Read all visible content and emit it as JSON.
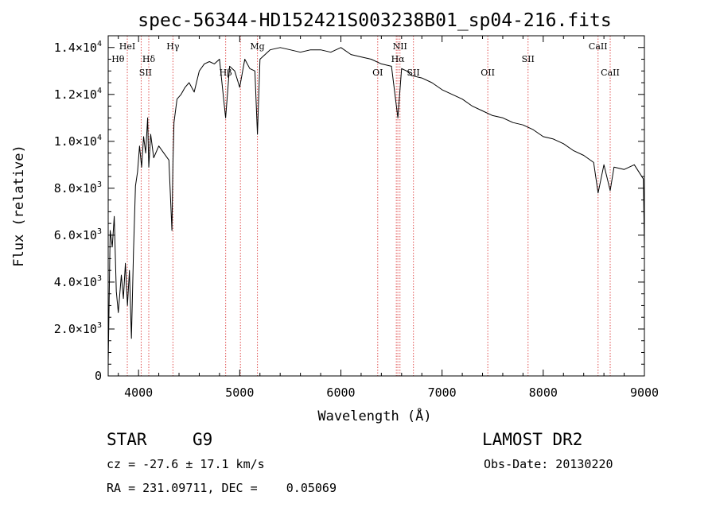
{
  "chart_data": {
    "type": "line",
    "title": "spec-56344-HD152421S003238B01_sp04-216.fits",
    "xlabel": "Wavelength (Å)",
    "ylabel": "Flux (relative)",
    "xlim": [
      3700,
      9000
    ],
    "ylim": [
      0,
      14500
    ],
    "x_ticks": [
      4000,
      5000,
      6000,
      7000,
      8000,
      9000
    ],
    "x_tick_labels": [
      "4000",
      "5000",
      "6000",
      "7000",
      "8000",
      "9000"
    ],
    "y_ticks": [
      0,
      2000,
      4000,
      6000,
      8000,
      10000,
      12000,
      14000
    ],
    "y_tick_labels": [
      {
        "mant": "0",
        "exp": ""
      },
      {
        "mant": "2.0×10",
        "exp": "3"
      },
      {
        "mant": "4.0×10",
        "exp": "3"
      },
      {
        "mant": "6.0×10",
        "exp": "3"
      },
      {
        "mant": "8.0×10",
        "exp": "3"
      },
      {
        "mant": "1.0×10",
        "exp": "4"
      },
      {
        "mant": "1.2×10",
        "exp": "4"
      },
      {
        "mant": "1.4×10",
        "exp": "4"
      }
    ],
    "grid": false,
    "series": [
      {
        "color": "#000000",
        "x": [
          3700,
          3720,
          3740,
          3760,
          3780,
          3800,
          3830,
          3850,
          3870,
          3890,
          3910,
          3930,
          3950,
          3970,
          3990,
          4010,
          4030,
          4050,
          4070,
          4090,
          4101,
          4120,
          4150,
          4200,
          4250,
          4300,
          4330,
          4340,
          4350,
          4380,
          4420,
          4460,
          4500,
          4550,
          4600,
          4650,
          4700,
          4750,
          4800,
          4861,
          4900,
          4950,
          5000,
          5050,
          5100,
          5150,
          5175,
          5200,
          5300,
          5400,
          5500,
          5600,
          5700,
          5800,
          5900,
          6000,
          6100,
          6200,
          6300,
          6400,
          6500,
          6563,
          6600,
          6650,
          6700,
          6800,
          6900,
          7000,
          7100,
          7200,
          7300,
          7400,
          7500,
          7600,
          7700,
          7800,
          7900,
          8000,
          8100,
          8200,
          8300,
          8400,
          8498,
          8542,
          8600,
          8662,
          8700,
          8800,
          8900,
          8960,
          8990,
          9000
        ],
        "y": [
          500,
          6200,
          5500,
          6800,
          3600,
          2700,
          4300,
          3300,
          4800,
          3000,
          4500,
          1600,
          5300,
          8100,
          8700,
          9800,
          8900,
          10200,
          9500,
          11000,
          8900,
          10300,
          9300,
          9800,
          9500,
          9200,
          6200,
          9100,
          10800,
          11800,
          12000,
          12300,
          12500,
          12100,
          13000,
          13300,
          13400,
          13300,
          13500,
          11000,
          13200,
          13000,
          12300,
          13500,
          13100,
          13000,
          10300,
          13500,
          13900,
          14000,
          13900,
          13800,
          13900,
          13900,
          13800,
          14000,
          13700,
          13600,
          13500,
          13300,
          13200,
          11000,
          13100,
          13000,
          12800,
          12700,
          12500,
          12200,
          12000,
          11800,
          11500,
          11300,
          11100,
          11000,
          10800,
          10700,
          10500,
          10200,
          10100,
          9900,
          9600,
          9400,
          9100,
          7800,
          9000,
          7900,
          8900,
          8800,
          9000,
          8600,
          8400,
          5500
        ]
      }
    ],
    "line_markers": {
      "color": "#e05050",
      "wavelengths": [
        3889,
        4026,
        4101,
        4340,
        4861,
        5007,
        5175,
        6364,
        6548,
        6563,
        6584,
        6717,
        7452,
        7850,
        8542,
        8662
      ],
      "labels": [
        {
          "text": "HeI",
          "x": 3889,
          "row": 1
        },
        {
          "text": "Hθ",
          "x": 3797,
          "row": 2
        },
        {
          "text": "Hδ",
          "x": 4101,
          "row": 2
        },
        {
          "text": "SII",
          "x": 4069,
          "row": 3
        },
        {
          "text": "Hγ",
          "x": 4340,
          "row": 1
        },
        {
          "text": "Mg",
          "x": 5175,
          "row": 1
        },
        {
          "text": "Hβ",
          "x": 4861,
          "row": 3
        },
        {
          "text": "NII",
          "x": 6584,
          "row": 1
        },
        {
          "text": "Hα",
          "x": 6563,
          "row": 2
        },
        {
          "text": "OI",
          "x": 6364,
          "row": 3
        },
        {
          "text": "SII",
          "x": 6717,
          "row": 3
        },
        {
          "text": "OII",
          "x": 7452,
          "row": 3
        },
        {
          "text": "SII",
          "x": 7850,
          "row": 2
        },
        {
          "text": "CaII",
          "x": 8542,
          "row": 1
        },
        {
          "text": "CaII",
          "x": 8662,
          "row": 3
        }
      ]
    }
  },
  "info": {
    "object_type": "STAR",
    "spectral_class": "G9",
    "survey": "LAMOST DR2",
    "cz": "cz = -27.6 ± 17.1 km/s",
    "obs_date": "Obs-Date: 20130220",
    "coords": "RA = 231.09711, DEC =    0.05069"
  }
}
